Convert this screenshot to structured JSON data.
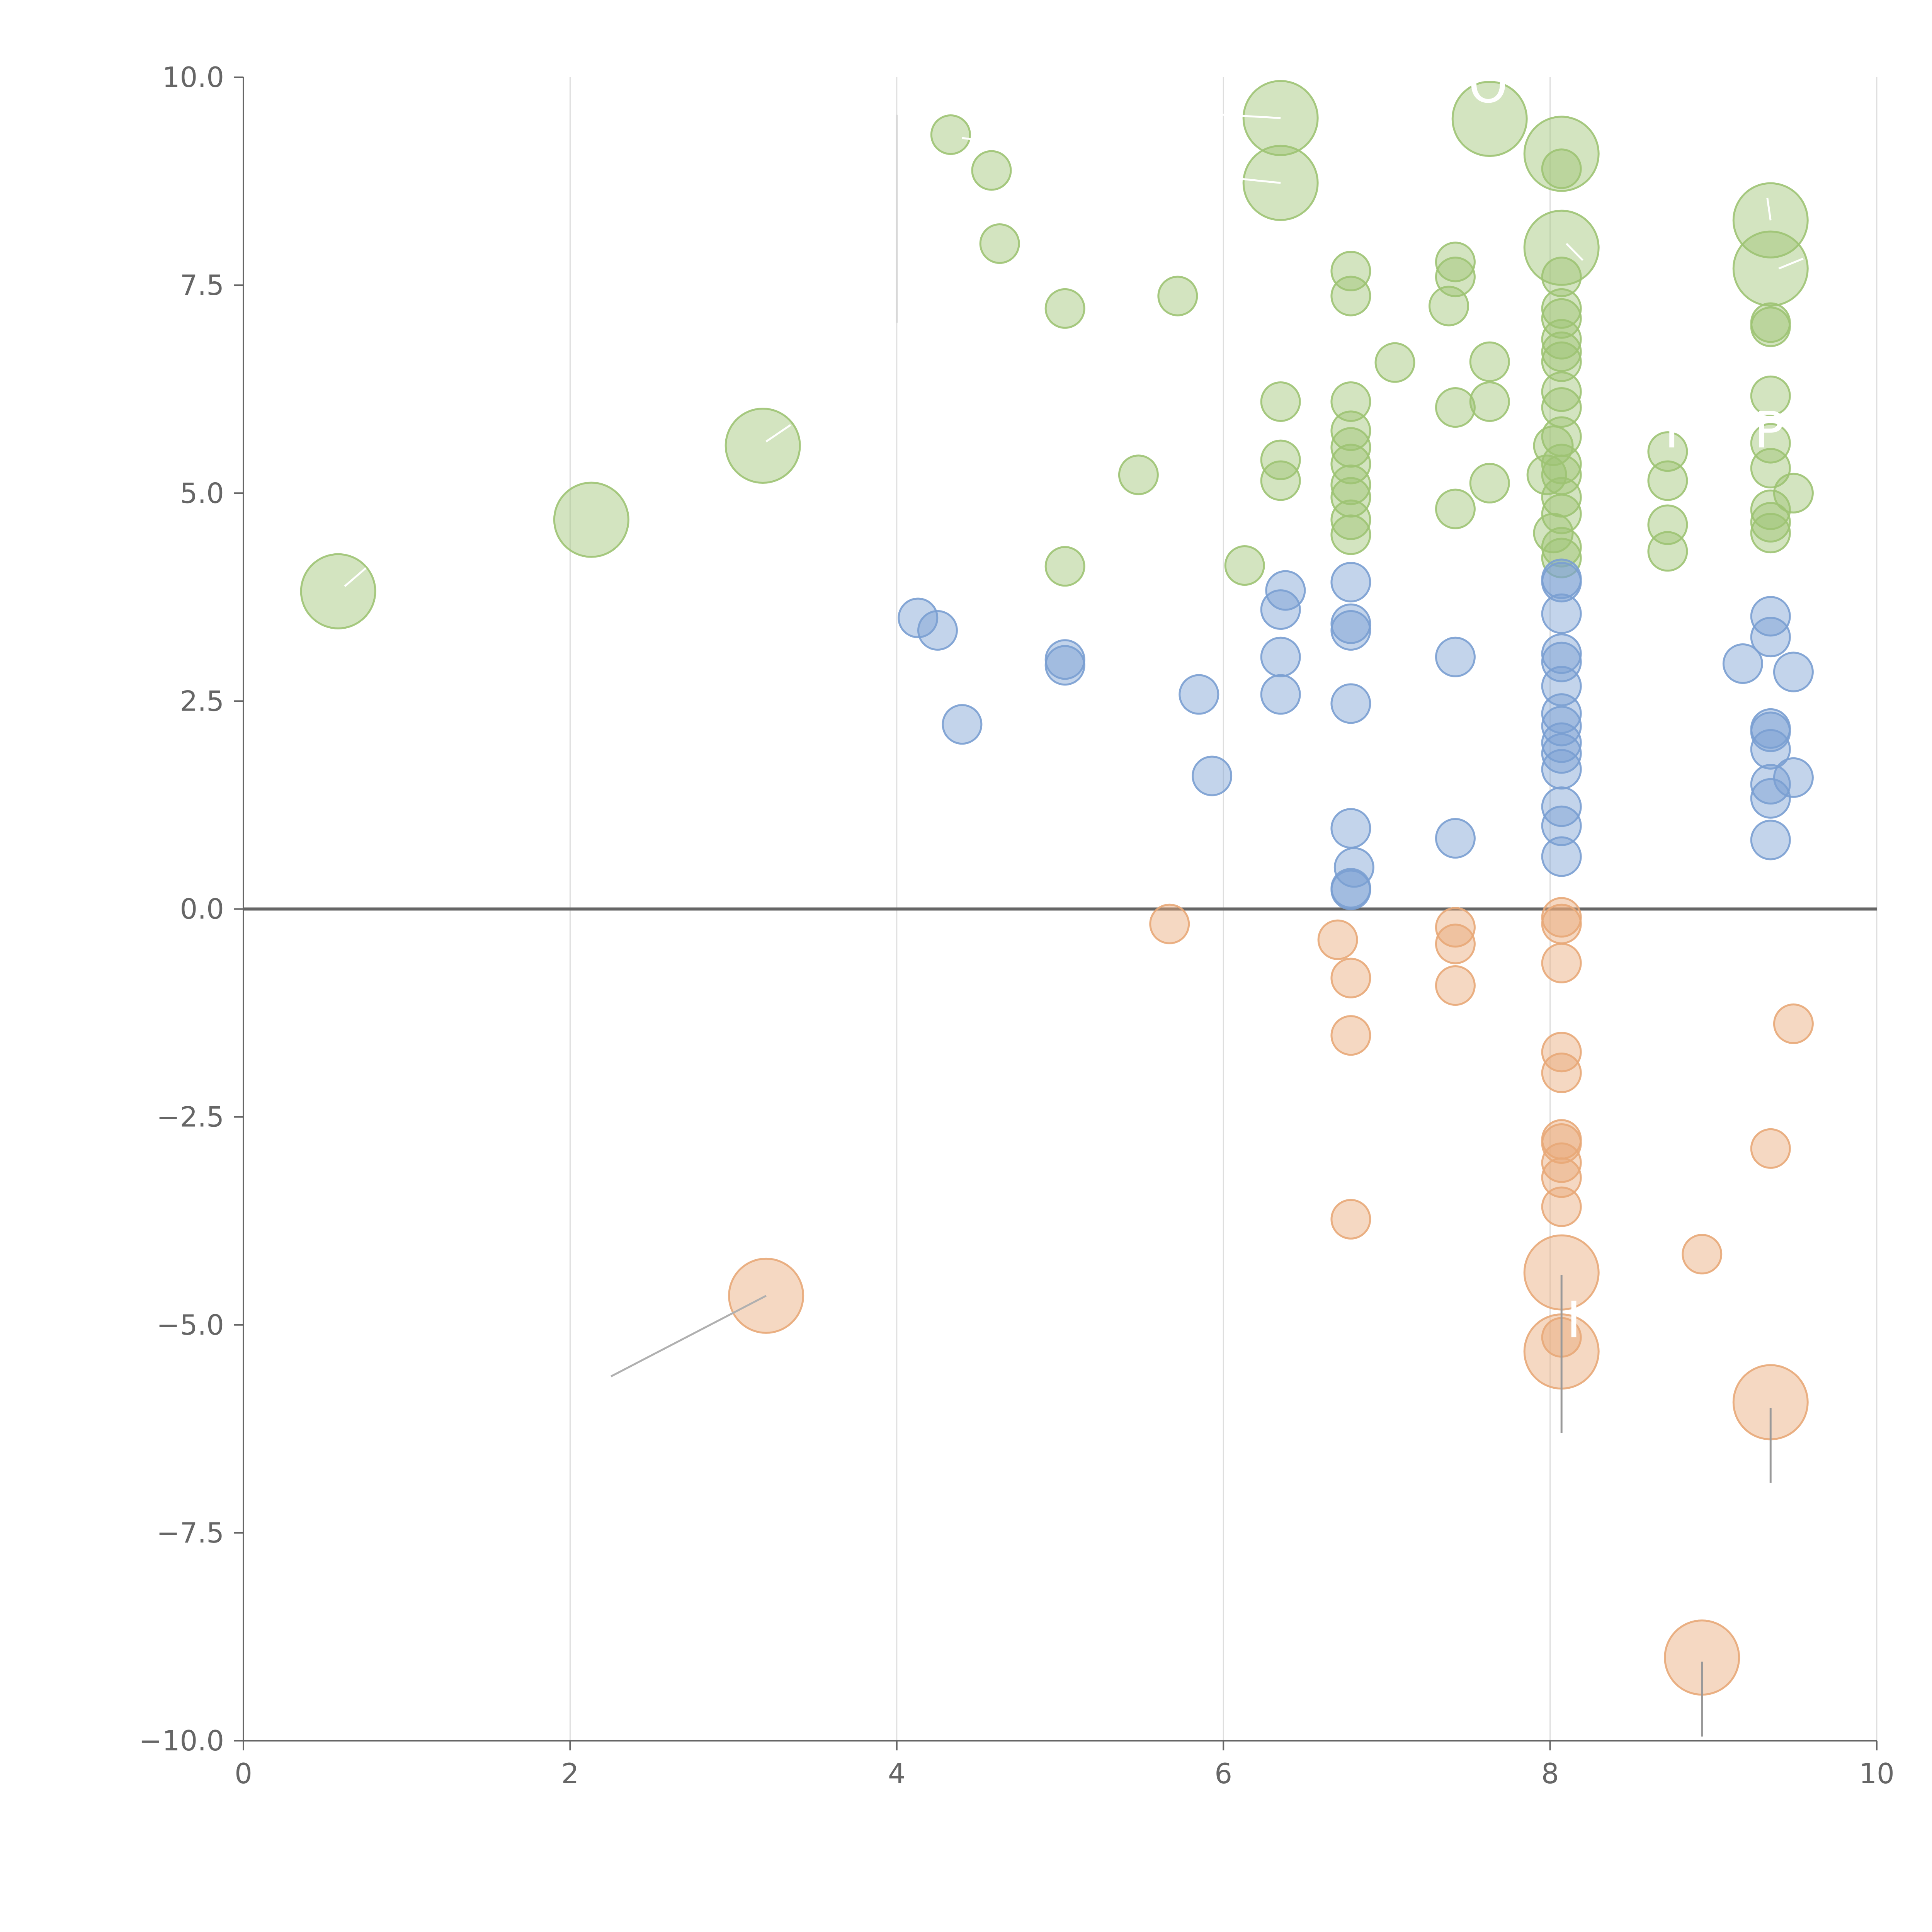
{
  "chart_data": {
    "type": "scatter",
    "title": "",
    "xlabel": "",
    "ylabel": "",
    "xlim": [
      0,
      10
    ],
    "ylim": [
      -10,
      10
    ],
    "grid": "vertical",
    "x_ticks": [
      0,
      2,
      4,
      6,
      8,
      10
    ],
    "y_ticks": [
      10,
      7.5,
      5,
      2.5,
      0,
      -2.5,
      -5,
      -7.5,
      -10
    ],
    "x_tick_labels": [
      "0",
      "2",
      "4",
      "6",
      "8",
      "10"
    ],
    "y_tick_labels": [
      "10.0",
      "7.5",
      "5.0",
      "2.5",
      "0.0",
      "−2.5",
      "−5.0",
      "−7.5",
      "−10.0"
    ],
    "reference_line_y": 0,
    "bubble_size_levels": {
      "small": 1,
      "large": 3
    },
    "series": [
      {
        "name": "green",
        "color": "#9dc373",
        "points": [
          [
            0.58,
            3.82,
            3
          ],
          [
            2.13,
            4.68,
            3
          ],
          [
            3.18,
            5.57,
            3
          ],
          [
            4.33,
            9.31,
            1
          ],
          [
            4.58,
            8.88,
            1
          ],
          [
            4.63,
            8.0,
            1
          ],
          [
            5.03,
            7.22,
            1
          ],
          [
            5.03,
            4.12,
            1
          ],
          [
            5.48,
            5.22,
            1
          ],
          [
            5.72,
            7.37,
            1
          ],
          [
            6.13,
            4.13,
            1
          ],
          [
            6.35,
            9.51,
            3
          ],
          [
            6.35,
            8.73,
            3
          ],
          [
            6.35,
            6.1,
            1
          ],
          [
            6.35,
            5.4,
            1
          ],
          [
            6.35,
            5.15,
            1
          ],
          [
            6.78,
            7.67,
            1
          ],
          [
            6.78,
            7.37,
            1
          ],
          [
            6.78,
            6.1,
            1
          ],
          [
            6.78,
            5.75,
            1
          ],
          [
            6.78,
            5.55,
            1
          ],
          [
            6.78,
            5.35,
            1
          ],
          [
            6.78,
            5.1,
            1
          ],
          [
            6.78,
            4.95,
            1
          ],
          [
            6.78,
            4.68,
            1
          ],
          [
            6.78,
            4.5,
            1
          ],
          [
            7.05,
            6.57,
            1
          ],
          [
            7.42,
            7.78,
            1
          ],
          [
            7.42,
            7.6,
            1
          ],
          [
            7.38,
            7.25,
            1
          ],
          [
            7.42,
            6.03,
            1
          ],
          [
            7.42,
            4.81,
            1
          ],
          [
            7.63,
            9.5,
            3
          ],
          [
            7.63,
            6.58,
            1
          ],
          [
            7.63,
            6.1,
            1
          ],
          [
            7.63,
            5.12,
            1
          ],
          [
            8.07,
            9.08,
            3
          ],
          [
            8.07,
            7.95,
            3
          ],
          [
            8.07,
            8.9,
            1
          ],
          [
            8.07,
            7.6,
            1
          ],
          [
            8.07,
            7.22,
            1
          ],
          [
            8.07,
            7.1,
            1
          ],
          [
            8.07,
            6.85,
            1
          ],
          [
            8.07,
            6.7,
            1
          ],
          [
            8.07,
            6.58,
            1
          ],
          [
            8.07,
            6.22,
            1
          ],
          [
            8.07,
            6.03,
            1
          ],
          [
            8.07,
            5.68,
            1
          ],
          [
            8.02,
            5.57,
            1
          ],
          [
            8.07,
            5.35,
            1
          ],
          [
            8.07,
            5.22,
            1
          ],
          [
            7.98,
            5.22,
            1
          ],
          [
            8.07,
            4.95,
            1
          ],
          [
            8.07,
            4.75,
            1
          ],
          [
            8.02,
            4.52,
            1
          ],
          [
            8.07,
            4.35,
            1
          ],
          [
            8.07,
            4.22,
            1
          ],
          [
            8.72,
            5.5,
            1
          ],
          [
            8.72,
            5.15,
            1
          ],
          [
            8.72,
            4.62,
            1
          ],
          [
            8.72,
            4.3,
            1
          ],
          [
            9.35,
            8.28,
            3
          ],
          [
            9.35,
            7.7,
            3
          ],
          [
            9.35,
            7.05,
            1
          ],
          [
            9.35,
            7.0,
            1
          ],
          [
            9.35,
            6.17,
            1
          ],
          [
            9.35,
            5.6,
            1
          ],
          [
            9.35,
            5.3,
            1
          ],
          [
            9.35,
            4.8,
            1
          ],
          [
            9.35,
            4.65,
            1
          ],
          [
            9.35,
            4.52,
            1
          ],
          [
            9.49,
            5.0,
            1
          ]
        ]
      },
      {
        "name": "blue",
        "color": "#7a9fd2",
        "points": [
          [
            4.13,
            3.5,
            1
          ],
          [
            4.25,
            3.35,
            1
          ],
          [
            4.4,
            2.22,
            1
          ],
          [
            5.03,
            3.0,
            1
          ],
          [
            5.03,
            2.93,
            1
          ],
          [
            5.85,
            2.58,
            1
          ],
          [
            5.93,
            1.6,
            1
          ],
          [
            6.38,
            3.83,
            1
          ],
          [
            6.35,
            3.6,
            1
          ],
          [
            6.35,
            3.03,
            1
          ],
          [
            6.35,
            2.58,
            1
          ],
          [
            6.78,
            3.93,
            1
          ],
          [
            6.78,
            3.43,
            1
          ],
          [
            6.78,
            3.35,
            1
          ],
          [
            6.78,
            2.47,
            1
          ],
          [
            6.78,
            0.97,
            1
          ],
          [
            6.8,
            0.5,
            1
          ],
          [
            6.78,
            0.25,
            1
          ],
          [
            6.78,
            0.23,
            1
          ],
          [
            7.42,
            3.03,
            1
          ],
          [
            7.42,
            0.85,
            1
          ],
          [
            8.07,
            3.97,
            1
          ],
          [
            8.07,
            3.93,
            1
          ],
          [
            8.07,
            3.55,
            1
          ],
          [
            8.07,
            3.07,
            1
          ],
          [
            8.07,
            2.97,
            1
          ],
          [
            8.07,
            2.68,
            1
          ],
          [
            8.07,
            2.35,
            1
          ],
          [
            8.07,
            2.2,
            1
          ],
          [
            8.07,
            2.0,
            1
          ],
          [
            8.07,
            1.87,
            1
          ],
          [
            8.07,
            1.68,
            1
          ],
          [
            8.07,
            1.23,
            1
          ],
          [
            8.07,
            1.0,
            1
          ],
          [
            8.07,
            0.63,
            1
          ],
          [
            9.18,
            2.95,
            1
          ],
          [
            9.35,
            3.52,
            1
          ],
          [
            9.35,
            3.27,
            1
          ],
          [
            9.35,
            2.17,
            1
          ],
          [
            9.35,
            2.13,
            1
          ],
          [
            9.35,
            1.92,
            1
          ],
          [
            9.35,
            1.5,
            1
          ],
          [
            9.35,
            1.33,
            1
          ],
          [
            9.35,
            0.83,
            1
          ],
          [
            9.49,
            2.85,
            1
          ],
          [
            9.49,
            1.58,
            1
          ]
        ]
      },
      {
        "name": "orange",
        "color": "#e8a878",
        "points": [
          [
            3.2,
            -4.65,
            3
          ],
          [
            5.67,
            -0.18,
            1
          ],
          [
            6.7,
            -0.37,
            1
          ],
          [
            6.78,
            -0.83,
            1
          ],
          [
            6.78,
            -1.52,
            1
          ],
          [
            6.78,
            -3.73,
            1
          ],
          [
            7.42,
            -0.22,
            1
          ],
          [
            7.42,
            -0.42,
            1
          ],
          [
            7.42,
            -0.92,
            1
          ],
          [
            8.07,
            -0.1,
            1
          ],
          [
            8.07,
            -0.18,
            1
          ],
          [
            8.07,
            -0.65,
            1
          ],
          [
            8.07,
            -1.72,
            1
          ],
          [
            8.07,
            -1.97,
            1
          ],
          [
            8.07,
            -2.77,
            1
          ],
          [
            8.07,
            -2.82,
            1
          ],
          [
            8.07,
            -3.05,
            1
          ],
          [
            8.07,
            -3.23,
            1
          ],
          [
            8.07,
            -3.58,
            1
          ],
          [
            8.07,
            -4.37,
            3
          ],
          [
            8.07,
            -5.32,
            3
          ],
          [
            8.07,
            -5.15,
            1
          ],
          [
            8.93,
            -4.15,
            1
          ],
          [
            8.93,
            -9.0,
            3
          ],
          [
            9.35,
            -2.88,
            1
          ],
          [
            9.35,
            -5.93,
            3
          ],
          [
            9.49,
            -1.38,
            1
          ]
        ]
      }
    ],
    "annotations": [
      {
        "label": "O",
        "x": 7.5,
        "y": 9.7
      },
      {
        "label": "P",
        "x": 8.7,
        "y": 5.55
      },
      {
        "label": "P",
        "x": 9.25,
        "y": 5.55
      },
      {
        "label": "I",
        "x": 8.1,
        "y": -5.15
      }
    ],
    "leader_lines": [
      {
        "x1": 2.25,
        "y1": -5.62,
        "x2": 3.2,
        "y2": -4.65,
        "color": "#b0b0b0"
      },
      {
        "x1": 8.07,
        "y1": -4.4,
        "x2": 8.07,
        "y2": -6.3,
        "color": "#999999"
      },
      {
        "x1": 9.35,
        "y1": -6.0,
        "x2": 9.35,
        "y2": -6.9,
        "color": "#999999"
      },
      {
        "x1": 8.93,
        "y1": -9.05,
        "x2": 8.93,
        "y2": -9.95,
        "color": "#999999"
      },
      {
        "x1": 4.0,
        "y1": 9.55,
        "x2": 4.0,
        "y2": 7.05,
        "color": "#d8d8d8"
      },
      {
        "x1": 0.62,
        "y1": 3.88,
        "x2": 0.75,
        "y2": 4.1,
        "color": "#ffffff"
      },
      {
        "x1": 3.2,
        "y1": 5.62,
        "x2": 3.35,
        "y2": 5.82,
        "color": "#ffffff"
      },
      {
        "x1": 4.4,
        "y1": 9.27,
        "x2": 4.7,
        "y2": 9.2,
        "color": "#ffffff"
      },
      {
        "x1": 6.35,
        "y1": 9.51,
        "x2": 5.9,
        "y2": 9.56,
        "color": "#ffffff"
      },
      {
        "x1": 6.35,
        "y1": 8.73,
        "x2": 6.1,
        "y2": 8.78,
        "color": "#ffffff"
      },
      {
        "x1": 8.1,
        "y1": 8.0,
        "x2": 8.2,
        "y2": 7.8,
        "color": "#ffffff"
      },
      {
        "x1": 9.35,
        "y1": 8.28,
        "x2": 9.33,
        "y2": 8.55,
        "color": "#ffffff"
      },
      {
        "x1": 9.4,
        "y1": 7.7,
        "x2": 9.55,
        "y2": 7.82,
        "color": "#ffffff"
      }
    ],
    "colors": {
      "axis": "#666666",
      "zero_line": "#666666",
      "gridline": "#dedede",
      "background": "#ffffff"
    }
  }
}
